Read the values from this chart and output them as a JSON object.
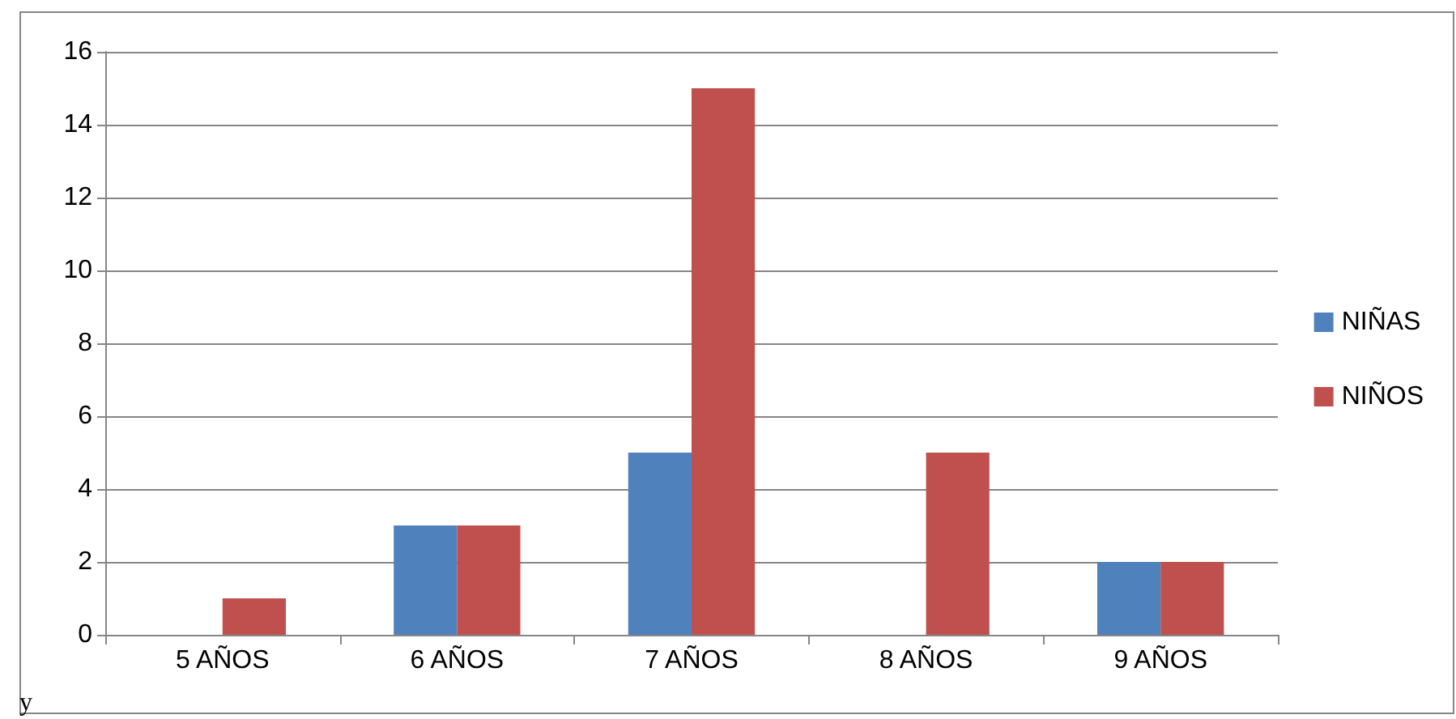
{
  "chart_data": {
    "type": "bar",
    "categories": [
      "5 AÑOS",
      "6 AÑOS",
      "7 AÑOS",
      "8 AÑOS",
      "9 AÑOS"
    ],
    "series": [
      {
        "name": "NIÑAS",
        "color": "#4f81bd",
        "values": [
          0,
          3,
          5,
          0,
          2
        ]
      },
      {
        "name": "NIÑOS",
        "color": "#c0504d",
        "values": [
          1,
          3,
          15,
          5,
          2
        ]
      }
    ],
    "ylim": [
      0,
      16
    ],
    "yticks": [
      0,
      2,
      4,
      6,
      8,
      10,
      12,
      14,
      16
    ],
    "grid": "y",
    "legend": "right",
    "annotations": [
      "y"
    ]
  }
}
